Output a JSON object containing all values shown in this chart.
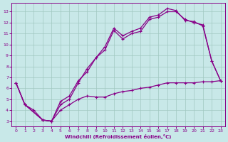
{
  "bg_color": "#c8e8e8",
  "grid_color": "#a0c8c0",
  "line_color": "#880088",
  "xlabel": "Windchill (Refroidissement éolien,°C)",
  "xlim": [
    -0.5,
    23.5
  ],
  "ylim": [
    2.5,
    13.8
  ],
  "xticks": [
    0,
    1,
    2,
    3,
    4,
    5,
    6,
    7,
    8,
    9,
    10,
    11,
    12,
    13,
    14,
    15,
    16,
    17,
    18,
    19,
    20,
    21,
    22,
    23
  ],
  "yticks": [
    3,
    4,
    5,
    6,
    7,
    8,
    9,
    10,
    11,
    12,
    13
  ],
  "line1_x": [
    0,
    1,
    3,
    4,
    5,
    6,
    7,
    8,
    9,
    10,
    11,
    12,
    13,
    14,
    15,
    16,
    17,
    18,
    19,
    20,
    21,
    22,
    23
  ],
  "line1_y": [
    6.5,
    4.5,
    3.1,
    3.0,
    4.8,
    5.3,
    6.7,
    7.5,
    8.8,
    9.8,
    11.5,
    10.8,
    11.2,
    11.5,
    12.5,
    12.7,
    13.3,
    13.1,
    12.2,
    12.1,
    11.7,
    8.5,
    6.7
  ],
  "line2_x": [
    0,
    1,
    3,
    4,
    5,
    6,
    7,
    8,
    9,
    10,
    11,
    12,
    13,
    14,
    15,
    16,
    17,
    18,
    19,
    20,
    21,
    22,
    23
  ],
  "line2_y": [
    6.5,
    4.5,
    3.1,
    3.0,
    4.5,
    5.0,
    6.5,
    7.8,
    8.8,
    9.5,
    11.3,
    10.5,
    11.0,
    11.2,
    12.3,
    12.5,
    13.0,
    13.0,
    12.3,
    12.0,
    11.8,
    8.5,
    6.7
  ],
  "line3_x": [
    0,
    1,
    2,
    3,
    4,
    5,
    6,
    7,
    8,
    9,
    10,
    11,
    12,
    13,
    14,
    15,
    16,
    17,
    18,
    19,
    20,
    21,
    22,
    23
  ],
  "line3_y": [
    6.5,
    4.5,
    4.0,
    3.1,
    3.0,
    4.0,
    4.5,
    5.0,
    5.3,
    5.2,
    5.2,
    5.5,
    5.7,
    5.8,
    6.0,
    6.1,
    6.3,
    6.5,
    6.5,
    6.5,
    6.5,
    6.6,
    6.6,
    6.7
  ]
}
